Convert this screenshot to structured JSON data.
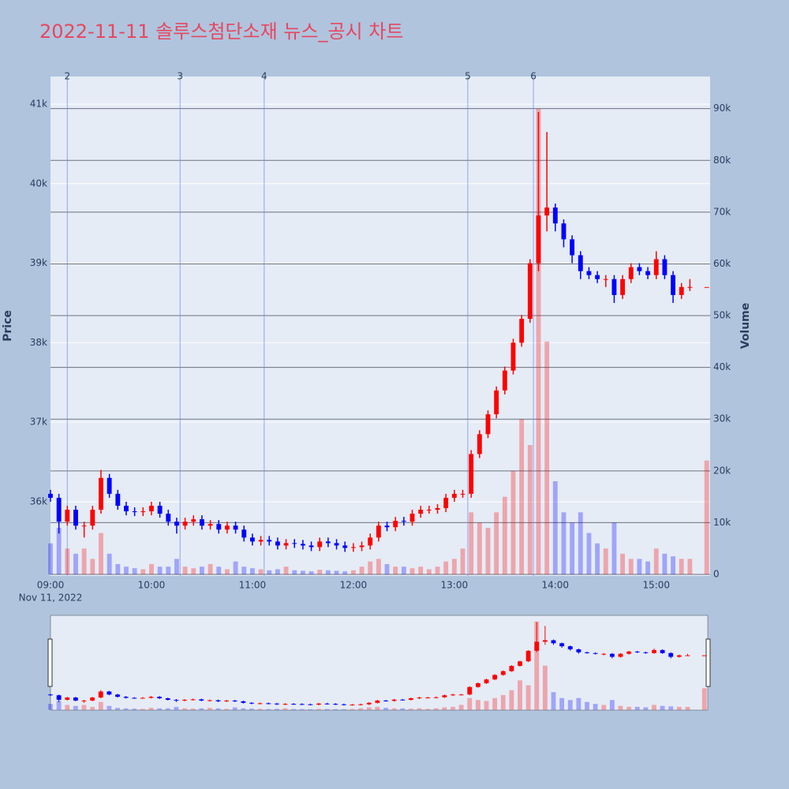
{
  "chart_data": {
    "type": "candlestick",
    "title": "2022-11-11 솔루스첨단소재 뉴스_공시 차트",
    "y_label": "Price",
    "y2_label": "Volume",
    "x_date_label": "Nov 11, 2022",
    "increasing_color": "#ff0000",
    "decreasing_color": "#0000ff",
    "x": [
      "09:00",
      "09:05",
      "09:10",
      "09:15",
      "09:20",
      "09:25",
      "09:30",
      "09:35",
      "09:40",
      "09:45",
      "09:50",
      "09:55",
      "10:00",
      "10:05",
      "10:10",
      "10:15",
      "10:20",
      "10:25",
      "10:30",
      "10:35",
      "10:40",
      "10:45",
      "10:50",
      "10:55",
      "11:00",
      "11:05",
      "11:10",
      "11:15",
      "11:20",
      "11:25",
      "11:30",
      "11:35",
      "11:40",
      "11:45",
      "11:50",
      "11:55",
      "12:00",
      "12:05",
      "12:10",
      "12:15",
      "12:20",
      "12:25",
      "12:30",
      "12:35",
      "12:40",
      "12:45",
      "12:50",
      "12:55",
      "13:00",
      "13:05",
      "13:10",
      "13:15",
      "13:20",
      "13:25",
      "13:30",
      "13:35",
      "13:40",
      "13:45",
      "13:50",
      "13:55",
      "14:00",
      "14:05",
      "14:10",
      "14:15",
      "14:20",
      "14:25",
      "14:30",
      "14:35",
      "14:40",
      "14:45",
      "14:50",
      "14:55",
      "15:00",
      "15:05",
      "15:10",
      "15:15",
      "15:20",
      "15:30"
    ],
    "open": [
      36100,
      36050,
      35750,
      35900,
      35700,
      35700,
      35900,
      36300,
      36100,
      35950,
      35880,
      35870,
      35880,
      35950,
      35850,
      35750,
      35700,
      35750,
      35780,
      35700,
      35720,
      35650,
      35700,
      35650,
      35550,
      35500,
      35520,
      35500,
      35450,
      35480,
      35470,
      35450,
      35430,
      35500,
      35480,
      35450,
      35420,
      35430,
      35450,
      35550,
      35700,
      35680,
      35760,
      35750,
      35850,
      35900,
      35900,
      35920,
      36050,
      36100,
      36100,
      36600,
      36850,
      37100,
      37400,
      37650,
      38000,
      38300,
      39000,
      39600,
      39700,
      39500,
      39300,
      39100,
      38900,
      38850,
      38800,
      38800,
      38600,
      38800,
      38950,
      38900,
      38850,
      39050,
      38850,
      38600,
      38700,
      38700
    ],
    "high": [
      36150,
      36100,
      35950,
      35950,
      35750,
      35950,
      36400,
      36350,
      36150,
      36000,
      35930,
      35930,
      36000,
      36000,
      35900,
      35800,
      35800,
      35830,
      35830,
      35770,
      35770,
      35750,
      35750,
      35700,
      35600,
      35570,
      35570,
      35550,
      35530,
      35530,
      35520,
      35500,
      35550,
      35550,
      35530,
      35500,
      35480,
      35500,
      35600,
      35750,
      35750,
      35810,
      35810,
      35900,
      35950,
      35950,
      35970,
      36100,
      36150,
      36150,
      36650,
      36900,
      37150,
      37450,
      37700,
      38050,
      38350,
      39050,
      40900,
      40650,
      39750,
      39550,
      39350,
      39150,
      38950,
      38900,
      38850,
      38850,
      38850,
      39000,
      39000,
      38950,
      39150,
      39100,
      38900,
      38750,
      38800,
      38700
    ],
    "low": [
      36000,
      35600,
      35700,
      35650,
      35550,
      35650,
      35850,
      36050,
      35900,
      35830,
      35820,
      35820,
      35830,
      35800,
      35700,
      35600,
      35650,
      35700,
      35650,
      35650,
      35600,
      35600,
      35600,
      35500,
      35450,
      35450,
      35450,
      35400,
      35400,
      35420,
      35400,
      35380,
      35380,
      35430,
      35400,
      35370,
      35370,
      35380,
      35400,
      35500,
      35630,
      35630,
      35700,
      35700,
      35800,
      35850,
      35850,
      35870,
      36000,
      36050,
      36050,
      36550,
      36800,
      37050,
      37350,
      37600,
      37950,
      38250,
      38900,
      39400,
      39400,
      39200,
      39000,
      38800,
      38800,
      38750,
      38700,
      38500,
      38550,
      38750,
      38850,
      38800,
      38800,
      38800,
      38500,
      38550,
      38650,
      38700
    ],
    "close": [
      36050,
      35750,
      35900,
      35700,
      35700,
      35900,
      36300,
      36100,
      35950,
      35880,
      35870,
      35880,
      35950,
      35850,
      35750,
      35700,
      35750,
      35780,
      35700,
      35720,
      35650,
      35700,
      35650,
      35550,
      35500,
      35520,
      35500,
      35450,
      35480,
      35470,
      35450,
      35430,
      35500,
      35480,
      35450,
      35420,
      35430,
      35450,
      35550,
      35700,
      35680,
      35760,
      35750,
      35850,
      35900,
      35900,
      35920,
      36050,
      36100,
      36100,
      36600,
      36850,
      37100,
      37400,
      37650,
      38000,
      38300,
      39000,
      39600,
      39700,
      39500,
      39300,
      39100,
      38900,
      38850,
      38800,
      38800,
      38600,
      38800,
      38950,
      38900,
      38850,
      39050,
      38850,
      38600,
      38700,
      38700,
      38700
    ],
    "volume": [
      6000,
      9000,
      5000,
      4000,
      5000,
      3000,
      8000,
      4000,
      2000,
      1500,
      1200,
      1000,
      2000,
      1500,
      1500,
      3000,
      1500,
      1200,
      1500,
      2000,
      1500,
      1000,
      2500,
      1500,
      1200,
      1000,
      800,
      1000,
      1500,
      800,
      700,
      600,
      900,
      800,
      700,
      600,
      800,
      1500,
      2500,
      3000,
      2000,
      1500,
      1500,
      1200,
      1500,
      1000,
      1500,
      2500,
      3000,
      5000,
      12000,
      10000,
      9000,
      12000,
      15000,
      20000,
      30000,
      25000,
      90000,
      45000,
      18000,
      12000,
      10000,
      12000,
      8000,
      6000,
      5000,
      10000,
      4000,
      3000,
      3000,
      2500,
      5000,
      4000,
      3500,
      3000,
      3000,
      22000
    ],
    "xlim": [
      "09:00",
      "15:32"
    ],
    "xticks": [
      "09:00",
      "10:00",
      "11:00",
      "12:00",
      "13:00",
      "14:00",
      "15:00"
    ],
    "ylim": [
      35067,
      41347
    ],
    "yticks": [
      {
        "value": 36000,
        "label": "36k"
      },
      {
        "value": 37000,
        "label": "37k"
      },
      {
        "value": 38000,
        "label": "38k"
      },
      {
        "value": 39000,
        "label": "39k"
      },
      {
        "value": 40000,
        "label": "40k"
      },
      {
        "value": 41000,
        "label": "41k"
      }
    ],
    "y2lim": [
      -300,
      96200
    ],
    "y2ticks": [
      0,
      {
        "value": 10000,
        "label": "10k"
      },
      {
        "value": 20000,
        "label": "20k"
      },
      {
        "value": 30000,
        "label": "30k"
      },
      {
        "value": 40000,
        "label": "40k"
      },
      {
        "value": 50000,
        "label": "50k"
      },
      {
        "value": 60000,
        "label": "60k"
      },
      {
        "value": 70000,
        "label": "70k"
      },
      {
        "value": 80000,
        "label": "80k"
      },
      {
        "value": 90000,
        "label": "90k"
      }
    ],
    "annotations": [
      {
        "x": "09:10",
        "label": "2"
      },
      {
        "x": "10:17",
        "label": "3"
      },
      {
        "x": "11:07",
        "label": "4"
      },
      {
        "x": "13:08",
        "label": "5"
      },
      {
        "x": "13:47",
        "label": "6"
      }
    ]
  }
}
